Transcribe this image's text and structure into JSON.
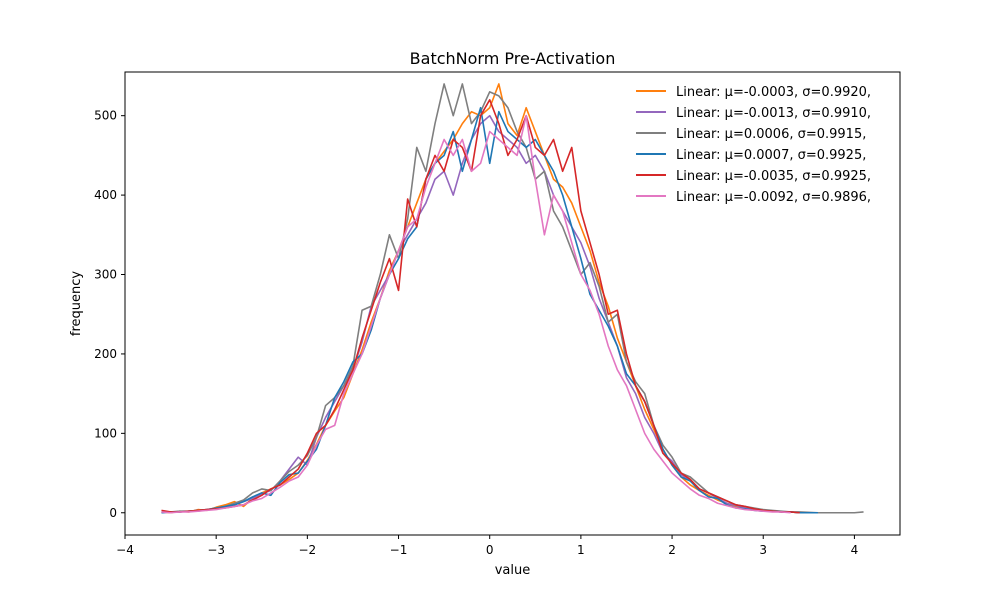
{
  "chart_data": {
    "type": "line",
    "title": "BatchNorm Pre-Activation",
    "xlabel": "value",
    "ylabel": "frequency",
    "xlim": [
      -4,
      4.5
    ],
    "ylim": [
      -28,
      555
    ],
    "xticks": [
      -4,
      -3,
      -2,
      -1,
      0,
      1,
      2,
      3,
      4
    ],
    "xtick_labels": [
      "−4",
      "−3",
      "−2",
      "−1",
      "0",
      "1",
      "2",
      "3",
      "4"
    ],
    "yticks": [
      0,
      100,
      200,
      300,
      400,
      500
    ],
    "ytick_labels": [
      "0",
      "100",
      "200",
      "300",
      "400",
      "500"
    ],
    "grid": false,
    "legend_position": "top-right",
    "series": [
      {
        "name": "Linear: μ=-0.0003, σ=0.9920,",
        "color": "#ff7f0e",
        "x": [
          -3.6,
          -3.5,
          -3.4,
          -3.3,
          -3.2,
          -3.1,
          -3.0,
          -2.9,
          -2.8,
          -2.7,
          -2.6,
          -2.5,
          -2.4,
          -2.3,
          -2.2,
          -2.1,
          -2.0,
          -1.9,
          -1.8,
          -1.7,
          -1.6,
          -1.5,
          -1.4,
          -1.3,
          -1.2,
          -1.1,
          -1.0,
          -0.9,
          -0.8,
          -0.7,
          -0.6,
          -0.5,
          -0.4,
          -0.3,
          -0.2,
          -0.1,
          0.0,
          0.1,
          0.2,
          0.3,
          0.4,
          0.5,
          0.6,
          0.7,
          0.8,
          0.9,
          1.0,
          1.1,
          1.2,
          1.3,
          1.4,
          1.5,
          1.6,
          1.7,
          1.8,
          1.9,
          2.0,
          2.1,
          2.2,
          2.3,
          2.4,
          2.5,
          2.6,
          2.7,
          2.8,
          2.9,
          3.0,
          3.1,
          3.2,
          3.3,
          3.4
        ],
        "y": [
          1,
          0,
          2,
          1,
          4,
          3,
          7,
          10,
          14,
          8,
          18,
          25,
          30,
          35,
          42,
          50,
          66,
          86,
          110,
          128,
          145,
          175,
          205,
          240,
          270,
          305,
          330,
          360,
          390,
          420,
          440,
          455,
          470,
          490,
          505,
          500,
          510,
          540,
          490,
          475,
          510,
          480,
          450,
          420,
          410,
          390,
          360,
          330,
          290,
          260,
          220,
          190,
          160,
          130,
          105,
          80,
          60,
          45,
          35,
          28,
          22,
          16,
          12,
          8,
          6,
          4,
          3,
          2,
          1,
          1,
          0
        ]
      },
      {
        "name": "Linear: μ=-0.0013, σ=0.9910,",
        "color": "#9467bd",
        "x": [
          -3.6,
          -3.5,
          -3.4,
          -3.3,
          -3.2,
          -3.1,
          -3.0,
          -2.9,
          -2.8,
          -2.7,
          -2.6,
          -2.5,
          -2.4,
          -2.3,
          -2.2,
          -2.1,
          -2.0,
          -1.9,
          -1.8,
          -1.7,
          -1.6,
          -1.5,
          -1.4,
          -1.3,
          -1.2,
          -1.1,
          -1.0,
          -0.9,
          -0.8,
          -0.7,
          -0.6,
          -0.5,
          -0.4,
          -0.3,
          -0.2,
          -0.1,
          0.0,
          0.1,
          0.2,
          0.3,
          0.4,
          0.5,
          0.6,
          0.7,
          0.8,
          0.9,
          1.0,
          1.1,
          1.2,
          1.3,
          1.4,
          1.5,
          1.6,
          1.7,
          1.8,
          1.9,
          2.0,
          2.1,
          2.2,
          2.3,
          2.4,
          2.5,
          2.6,
          2.7,
          2.8,
          2.9,
          3.0,
          3.1,
          3.2,
          3.3,
          3.4
        ],
        "y": [
          0,
          1,
          1,
          2,
          2,
          4,
          5,
          8,
          10,
          14,
          18,
          24,
          28,
          40,
          55,
          70,
          60,
          95,
          120,
          140,
          160,
          180,
          215,
          260,
          280,
          300,
          330,
          350,
          370,
          390,
          420,
          430,
          400,
          440,
          470,
          490,
          500,
          480,
          470,
          460,
          440,
          450,
          430,
          400,
          380,
          360,
          340,
          310,
          270,
          240,
          210,
          170,
          150,
          120,
          100,
          75,
          65,
          48,
          40,
          30,
          25,
          18,
          12,
          9,
          6,
          4,
          3,
          2,
          1,
          1,
          0
        ]
      },
      {
        "name": "Linear: μ=0.0006, σ=0.9915,",
        "color": "#7f7f7f",
        "x": [
          -3.6,
          -3.5,
          -3.4,
          -3.3,
          -3.2,
          -3.1,
          -3.0,
          -2.9,
          -2.8,
          -2.7,
          -2.6,
          -2.5,
          -2.4,
          -2.3,
          -2.2,
          -2.1,
          -2.0,
          -1.9,
          -1.8,
          -1.7,
          -1.6,
          -1.5,
          -1.4,
          -1.3,
          -1.2,
          -1.1,
          -1.0,
          -0.9,
          -0.8,
          -0.7,
          -0.6,
          -0.5,
          -0.4,
          -0.3,
          -0.2,
          -0.1,
          0.0,
          0.1,
          0.2,
          0.3,
          0.4,
          0.5,
          0.6,
          0.7,
          0.8,
          0.9,
          1.0,
          1.1,
          1.2,
          1.3,
          1.4,
          1.5,
          1.6,
          1.7,
          1.8,
          1.9,
          2.0,
          2.1,
          2.2,
          2.3,
          2.4,
          2.5,
          2.6,
          2.7,
          2.8,
          2.9,
          3.0,
          3.1,
          3.2,
          3.3,
          3.4,
          3.6,
          3.8,
          4.0,
          4.1
        ],
        "y": [
          1,
          1,
          2,
          2,
          3,
          4,
          6,
          8,
          12,
          16,
          25,
          30,
          28,
          40,
          52,
          60,
          72,
          95,
          135,
          145,
          160,
          185,
          255,
          260,
          300,
          350,
          320,
          370,
          460,
          430,
          490,
          540,
          500,
          540,
          490,
          505,
          530,
          525,
          510,
          480,
          460,
          420,
          430,
          380,
          360,
          330,
          300,
          315,
          285,
          240,
          250,
          190,
          165,
          150,
          110,
          85,
          70,
          50,
          45,
          35,
          25,
          20,
          15,
          10,
          8,
          6,
          4,
          3,
          2,
          1,
          1,
          0,
          0,
          0,
          1
        ]
      },
      {
        "name": "Linear: μ=0.0007, σ=0.9925,",
        "color": "#1f77b4",
        "x": [
          -3.6,
          -3.5,
          -3.4,
          -3.3,
          -3.2,
          -3.1,
          -3.0,
          -2.9,
          -2.8,
          -2.7,
          -2.6,
          -2.5,
          -2.4,
          -2.3,
          -2.2,
          -2.1,
          -2.0,
          -1.9,
          -1.8,
          -1.7,
          -1.6,
          -1.5,
          -1.4,
          -1.3,
          -1.2,
          -1.1,
          -1.0,
          -0.9,
          -0.8,
          -0.7,
          -0.6,
          -0.5,
          -0.4,
          -0.3,
          -0.2,
          -0.1,
          0.0,
          0.1,
          0.2,
          0.3,
          0.4,
          0.5,
          0.6,
          0.7,
          0.8,
          0.9,
          1.0,
          1.1,
          1.2,
          1.3,
          1.4,
          1.5,
          1.6,
          1.7,
          1.8,
          1.9,
          2.0,
          2.1,
          2.2,
          2.3,
          2.4,
          2.5,
          2.6,
          2.7,
          2.8,
          2.9,
          3.0,
          3.1,
          3.2,
          3.3,
          3.4,
          3.5,
          3.6
        ],
        "y": [
          0,
          1,
          1,
          2,
          3,
          4,
          6,
          8,
          10,
          14,
          20,
          25,
          22,
          38,
          48,
          50,
          65,
          80,
          110,
          145,
          165,
          190,
          200,
          230,
          270,
          300,
          320,
          345,
          360,
          420,
          440,
          450,
          480,
          430,
          470,
          510,
          440,
          505,
          480,
          470,
          460,
          470,
          450,
          430,
          400,
          360,
          320,
          275,
          255,
          235,
          210,
          175,
          160,
          140,
          110,
          80,
          60,
          45,
          40,
          28,
          20,
          18,
          10,
          6,
          5,
          3,
          2,
          2,
          1,
          1,
          0,
          0,
          0
        ]
      },
      {
        "name": "Linear: μ=-0.0035, σ=0.9925,",
        "color": "#d62728",
        "x": [
          -3.6,
          -3.5,
          -3.4,
          -3.3,
          -3.2,
          -3.1,
          -3.0,
          -2.9,
          -2.8,
          -2.7,
          -2.6,
          -2.5,
          -2.4,
          -2.3,
          -2.2,
          -2.1,
          -2.0,
          -1.9,
          -1.8,
          -1.7,
          -1.6,
          -1.5,
          -1.4,
          -1.3,
          -1.2,
          -1.1,
          -1.0,
          -0.9,
          -0.8,
          -0.7,
          -0.6,
          -0.5,
          -0.4,
          -0.3,
          -0.2,
          -0.1,
          0.0,
          0.1,
          0.2,
          0.3,
          0.4,
          0.5,
          0.6,
          0.7,
          0.8,
          0.9,
          1.0,
          1.1,
          1.2,
          1.3,
          1.4,
          1.5,
          1.6,
          1.7,
          1.8,
          1.9,
          2.0,
          2.1,
          2.2,
          2.3,
          2.4,
          2.5,
          2.6,
          2.7,
          2.8,
          2.9,
          3.0,
          3.1,
          3.2,
          3.3,
          3.4
        ],
        "y": [
          3,
          1,
          1,
          2,
          3,
          4,
          5,
          6,
          8,
          10,
          16,
          22,
          30,
          35,
          45,
          55,
          75,
          100,
          110,
          130,
          155,
          180,
          220,
          255,
          290,
          320,
          280,
          395,
          360,
          420,
          450,
          430,
          470,
          460,
          430,
          500,
          520,
          490,
          450,
          470,
          500,
          460,
          450,
          470,
          430,
          460,
          380,
          340,
          300,
          250,
          255,
          200,
          160,
          140,
          110,
          75,
          62,
          50,
          42,
          30,
          25,
          20,
          15,
          10,
          8,
          5,
          3,
          2,
          1,
          1,
          0
        ]
      },
      {
        "name": "Linear: μ=-0.0092, σ=0.9896,",
        "color": "#e377c2",
        "x": [
          -3.6,
          -3.5,
          -3.4,
          -3.3,
          -3.2,
          -3.1,
          -3.0,
          -2.9,
          -2.8,
          -2.7,
          -2.6,
          -2.5,
          -2.4,
          -2.3,
          -2.2,
          -2.1,
          -2.0,
          -1.9,
          -1.8,
          -1.7,
          -1.6,
          -1.5,
          -1.4,
          -1.3,
          -1.2,
          -1.1,
          -1.0,
          -0.9,
          -0.8,
          -0.7,
          -0.6,
          -0.5,
          -0.4,
          -0.3,
          -0.2,
          -0.1,
          0.0,
          0.1,
          0.2,
          0.3,
          0.4,
          0.5,
          0.6,
          0.7,
          0.8,
          0.9,
          1.0,
          1.1,
          1.2,
          1.3,
          1.4,
          1.5,
          1.6,
          1.7,
          1.8,
          1.9,
          2.0,
          2.1,
          2.2,
          2.3,
          2.4,
          2.5,
          2.6,
          2.7,
          2.8,
          2.9,
          3.0,
          3.1,
          3.2,
          3.3
        ],
        "y": [
          1,
          0,
          1,
          1,
          2,
          3,
          4,
          6,
          8,
          10,
          15,
          18,
          25,
          32,
          40,
          45,
          60,
          85,
          105,
          110,
          150,
          175,
          200,
          235,
          270,
          300,
          330,
          360,
          370,
          410,
          440,
          470,
          450,
          470,
          430,
          440,
          480,
          470,
          460,
          450,
          500,
          420,
          350,
          400,
          380,
          340,
          300,
          280,
          250,
          210,
          180,
          160,
          130,
          100,
          80,
          65,
          50,
          40,
          30,
          22,
          18,
          12,
          9,
          6,
          4,
          3,
          2,
          1,
          1,
          0
        ]
      }
    ]
  }
}
